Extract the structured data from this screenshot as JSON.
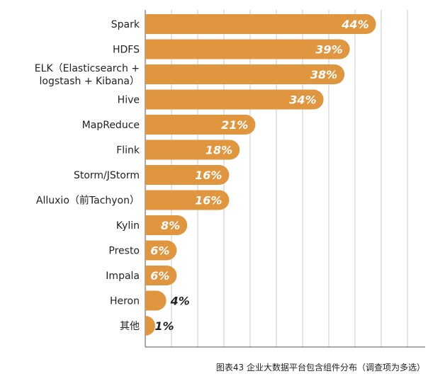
{
  "chart_data": {
    "type": "bar",
    "orientation": "horizontal",
    "title": "图表43 企业大数据平台包含组件分布（调查项为多选）",
    "categories": [
      "Spark",
      "HDFS",
      "ELK（Elasticsearch + logstash + Kibana）",
      "Hive",
      "MapReduce",
      "Flink",
      "Storm/JStorm",
      "Alluxio（前Tachyon）",
      "Kylin",
      "Presto",
      "Impala",
      "Heron",
      "其他"
    ],
    "category_lines": [
      [
        "Spark"
      ],
      [
        "HDFS"
      ],
      [
        "ELK（Elasticsearch +",
        "logstash + Kibana）"
      ],
      [
        "Hive"
      ],
      [
        "MapReduce"
      ],
      [
        "Flink"
      ],
      [
        "Storm/JStorm"
      ],
      [
        "Alluxio（前Tachyon）"
      ],
      [
        "Kylin"
      ],
      [
        "Presto"
      ],
      [
        "Impala"
      ],
      [
        "Heron"
      ],
      [
        "其他"
      ]
    ],
    "values": [
      44,
      39,
      38,
      34,
      21,
      18,
      16,
      16,
      8,
      6,
      6,
      4,
      1
    ],
    "value_labels": [
      "44%",
      "39%",
      "38%",
      "34%",
      "21%",
      "18%",
      "16%",
      "16%",
      "8%",
      "6%",
      "6%",
      "4%",
      "1%"
    ],
    "xlim": [
      0,
      52
    ],
    "grid": true,
    "bar_color": "#e0953f",
    "label_inside_color": "#ffffff",
    "label_outside_color": "#222222",
    "grid_color": "#c8c8c8"
  }
}
